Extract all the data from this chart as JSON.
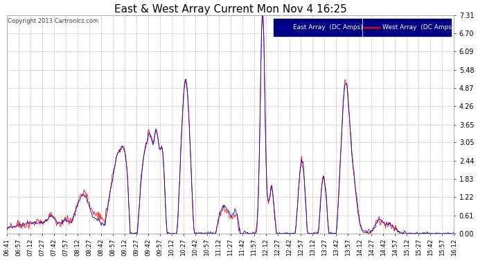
{
  "title": "East & West Array Current Mon Nov 4 16:25",
  "copyright": "Copyright 2013 Cartronics.com",
  "legend_east": "East Array  (DC Amps)",
  "legend_west": "West Array  (DC Amps)",
  "east_color": "#0000cc",
  "west_color": "#ff0000",
  "legend_bg": "#000080",
  "background_color": "#ffffff",
  "grid_color": "#bbbbbb",
  "yticks": [
    0.0,
    0.61,
    1.22,
    1.83,
    2.44,
    3.05,
    3.65,
    4.26,
    4.87,
    5.48,
    6.09,
    6.7,
    7.31
  ],
  "ylim": [
    0.0,
    7.31
  ],
  "xtick_labels": [
    "06:41",
    "06:57",
    "07:12",
    "07:27",
    "07:42",
    "07:57",
    "08:12",
    "08:27",
    "08:42",
    "08:57",
    "09:12",
    "09:27",
    "09:42",
    "09:57",
    "10:12",
    "10:27",
    "10:42",
    "10:57",
    "11:12",
    "11:27",
    "11:42",
    "11:57",
    "12:12",
    "12:27",
    "12:42",
    "12:57",
    "13:12",
    "13:27",
    "13:42",
    "13:57",
    "14:12",
    "14:27",
    "14:42",
    "14:57",
    "15:12",
    "15:27",
    "15:42",
    "15:57",
    "16:12"
  ],
  "num_points": 570
}
